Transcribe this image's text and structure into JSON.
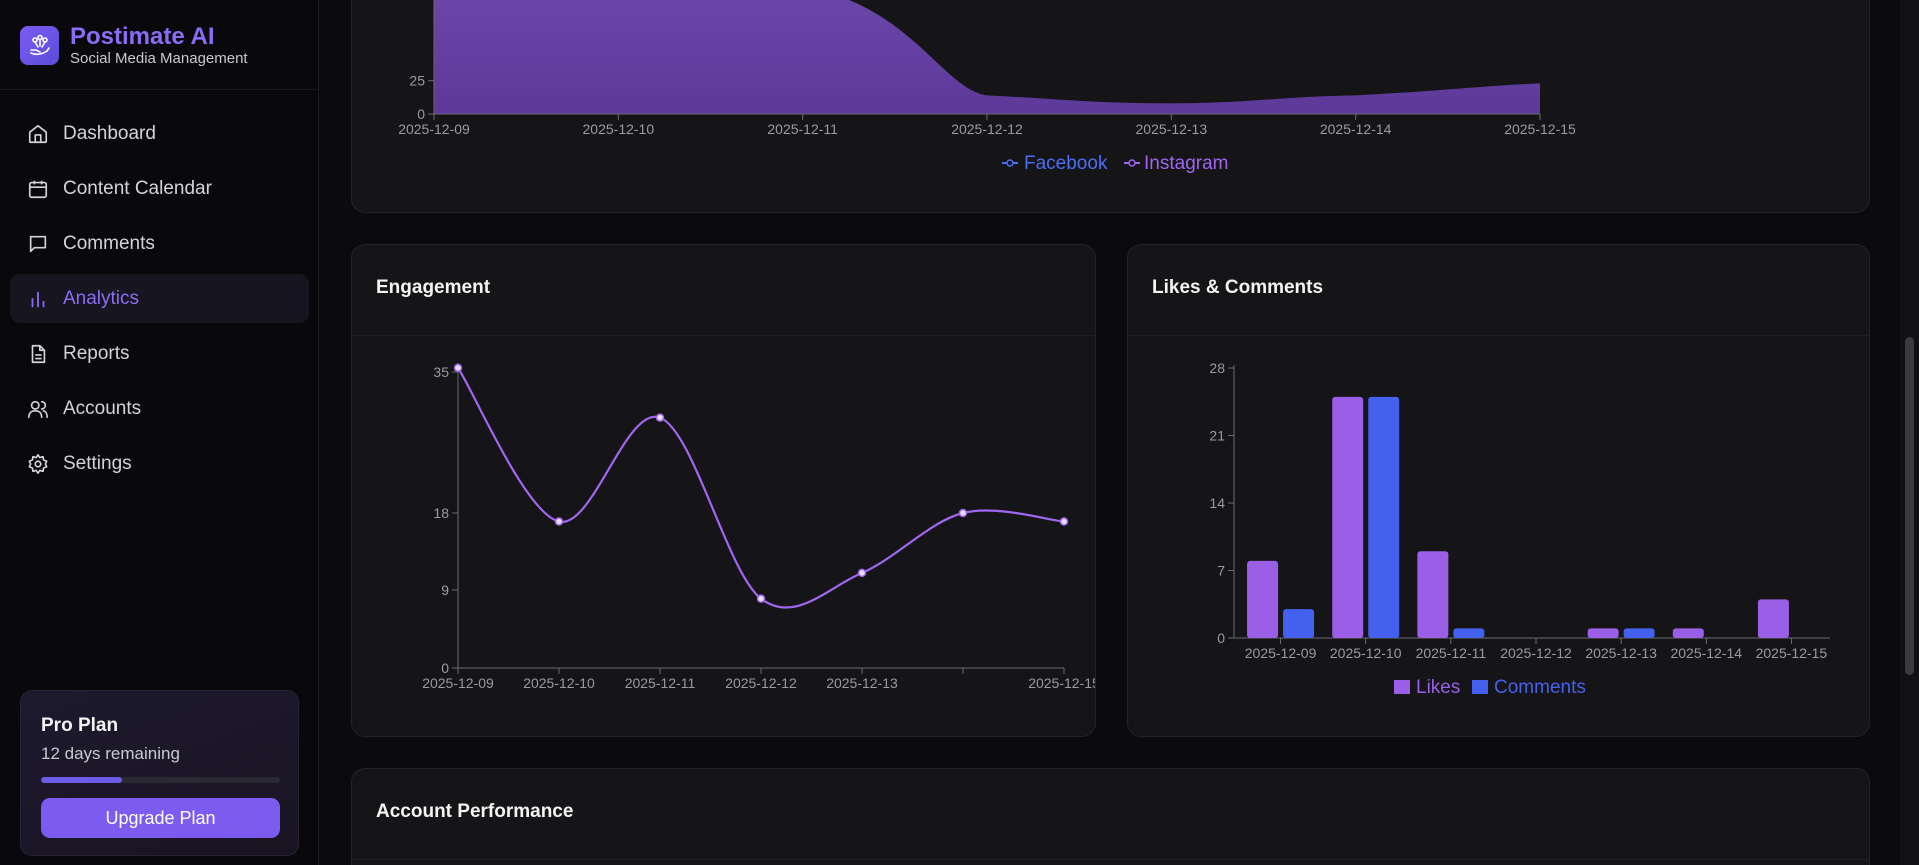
{
  "brand": {
    "title": "Postimate AI",
    "subtitle": "Social Media Management"
  },
  "nav": {
    "items": [
      {
        "label": "Dashboard",
        "icon": "home-icon"
      },
      {
        "label": "Content Calendar",
        "icon": "calendar-icon"
      },
      {
        "label": "Comments",
        "icon": "message-icon"
      },
      {
        "label": "Analytics",
        "icon": "bar-chart-icon",
        "active": true
      },
      {
        "label": "Reports",
        "icon": "file-text-icon"
      },
      {
        "label": "Accounts",
        "icon": "users-icon"
      },
      {
        "label": "Settings",
        "icon": "gear-icon"
      }
    ]
  },
  "plan": {
    "title": "Pro Plan",
    "days_remaining": "12 days remaining",
    "progress": 0.34,
    "button": "Upgrade Plan"
  },
  "colors": {
    "accent": "#8b6cf6",
    "facebook": "#4c6ef5",
    "instagram": "#a066f0",
    "likes": "#9b5ee6",
    "comments": "#4361ee"
  },
  "cards": {
    "engagement": {
      "title": "Engagement"
    },
    "likes_comments": {
      "title": "Likes & Comments"
    },
    "account_performance": {
      "title": "Account Performance"
    }
  },
  "chart_data": [
    {
      "type": "area",
      "title": "",
      "x": [
        "2025-12-09",
        "2025-12-10",
        "2025-12-11",
        "2025-12-12",
        "2025-12-13",
        "2025-12-14",
        "2025-12-15"
      ],
      "y_ticks_visible": [
        "0",
        "25"
      ],
      "series": [
        {
          "name": "Facebook",
          "values": [
            0,
            0,
            0,
            0,
            0,
            0,
            0
          ]
        },
        {
          "name": "Instagram",
          "values": [
            90,
            90,
            90,
            14,
            8,
            14,
            23
          ]
        }
      ],
      "legend": "bottom"
    },
    {
      "type": "line",
      "title": "Engagement",
      "x": [
        "2025-12-09",
        "2025-12-10",
        "2025-12-11",
        "2025-12-12",
        "2025-12-13",
        "2025-12-14",
        "2025-12-15"
      ],
      "x_tick_labels": [
        "2025-12-09",
        "2025-12-10",
        "2025-12-11",
        "2025-12-12",
        "2025-12-13",
        "",
        "2025-12-15"
      ],
      "y_ticks": [
        0,
        9,
        18,
        35
      ],
      "ylim": [
        0,
        35
      ],
      "series": [
        {
          "name": "",
          "values": [
            35.5,
            17,
            29.5,
            8,
            11,
            18,
            17
          ]
        }
      ]
    },
    {
      "type": "bar",
      "title": "Likes & Comments",
      "categories": [
        "2025-12-09",
        "2025-12-10",
        "2025-12-11",
        "2025-12-12",
        "2025-12-13",
        "2025-12-14",
        "2025-12-15"
      ],
      "y_ticks": [
        0,
        7,
        14,
        21,
        28
      ],
      "ylim": [
        0,
        28
      ],
      "series": [
        {
          "name": "Likes",
          "values": [
            8,
            25,
            9,
            0,
            1,
            1,
            4
          ]
        },
        {
          "name": "Comments",
          "values": [
            3,
            25,
            1,
            0,
            1,
            0,
            0
          ]
        }
      ],
      "legend": "bottom"
    }
  ]
}
